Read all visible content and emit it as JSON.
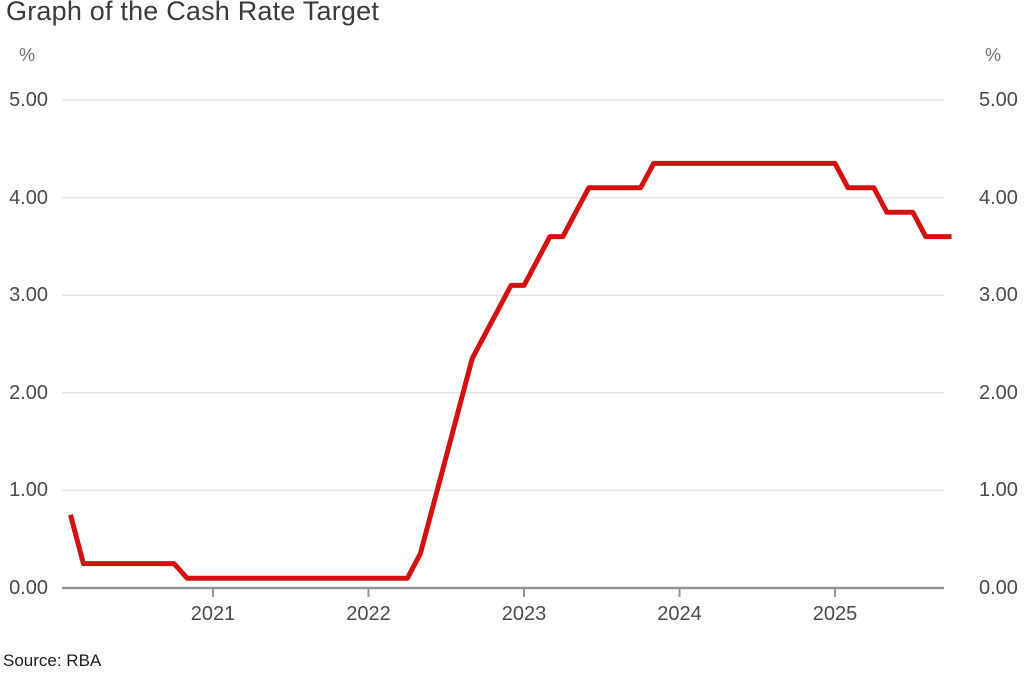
{
  "title": "Graph of the Cash Rate Target",
  "source": "Source: RBA",
  "chart_data": {
    "type": "line",
    "title": "Graph of the Cash Rate Target",
    "unit": "%",
    "line_color": "#d41111",
    "grid_color": "#e4e4e4",
    "axis_color": "#959595",
    "legend": "none",
    "grid": "horizontal",
    "y_axis": {
      "min": 0,
      "max": 5,
      "tick_labels": [
        "0.00",
        "1.00",
        "2.00",
        "3.00",
        "4.00",
        "5.00"
      ],
      "tick_values": [
        0,
        1,
        2,
        3,
        4,
        5
      ],
      "shown_on": "both sides"
    },
    "x_axis": {
      "tick_labels": [
        "2021",
        "2022",
        "2023",
        "2024",
        "2025"
      ],
      "tick_values": [
        2021,
        2022,
        2023,
        2024,
        2025
      ],
      "range_start": "2020-02",
      "range_end": "2025-10"
    },
    "series": [
      {
        "name": "Cash Rate Target",
        "points_format": "[year, month, rate_percent]",
        "points": [
          [
            2020,
            2,
            0.75
          ],
          [
            2020,
            3,
            0.25
          ],
          [
            2020,
            4,
            0.25
          ],
          [
            2020,
            5,
            0.25
          ],
          [
            2020,
            6,
            0.25
          ],
          [
            2020,
            7,
            0.25
          ],
          [
            2020,
            8,
            0.25
          ],
          [
            2020,
            9,
            0.25
          ],
          [
            2020,
            10,
            0.25
          ],
          [
            2020,
            11,
            0.1
          ],
          [
            2020,
            12,
            0.1
          ],
          [
            2021,
            1,
            0.1
          ],
          [
            2021,
            2,
            0.1
          ],
          [
            2021,
            3,
            0.1
          ],
          [
            2021,
            4,
            0.1
          ],
          [
            2021,
            5,
            0.1
          ],
          [
            2021,
            6,
            0.1
          ],
          [
            2021,
            7,
            0.1
          ],
          [
            2021,
            8,
            0.1
          ],
          [
            2021,
            9,
            0.1
          ],
          [
            2021,
            10,
            0.1
          ],
          [
            2021,
            11,
            0.1
          ],
          [
            2021,
            12,
            0.1
          ],
          [
            2022,
            1,
            0.1
          ],
          [
            2022,
            2,
            0.1
          ],
          [
            2022,
            3,
            0.1
          ],
          [
            2022,
            4,
            0.1
          ],
          [
            2022,
            5,
            0.35
          ],
          [
            2022,
            6,
            0.85
          ],
          [
            2022,
            7,
            1.35
          ],
          [
            2022,
            8,
            1.85
          ],
          [
            2022,
            9,
            2.35
          ],
          [
            2022,
            10,
            2.6
          ],
          [
            2022,
            11,
            2.85
          ],
          [
            2022,
            12,
            3.1
          ],
          [
            2023,
            1,
            3.1
          ],
          [
            2023,
            2,
            3.35
          ],
          [
            2023,
            3,
            3.6
          ],
          [
            2023,
            4,
            3.6
          ],
          [
            2023,
            5,
            3.85
          ],
          [
            2023,
            6,
            4.1
          ],
          [
            2023,
            7,
            4.1
          ],
          [
            2023,
            8,
            4.1
          ],
          [
            2023,
            9,
            4.1
          ],
          [
            2023,
            10,
            4.1
          ],
          [
            2023,
            11,
            4.35
          ],
          [
            2023,
            12,
            4.35
          ],
          [
            2024,
            1,
            4.35
          ],
          [
            2024,
            2,
            4.35
          ],
          [
            2024,
            3,
            4.35
          ],
          [
            2024,
            4,
            4.35
          ],
          [
            2024,
            5,
            4.35
          ],
          [
            2024,
            6,
            4.35
          ],
          [
            2024,
            7,
            4.35
          ],
          [
            2024,
            8,
            4.35
          ],
          [
            2024,
            9,
            4.35
          ],
          [
            2024,
            10,
            4.35
          ],
          [
            2024,
            11,
            4.35
          ],
          [
            2024,
            12,
            4.35
          ],
          [
            2025,
            1,
            4.35
          ],
          [
            2025,
            2,
            4.1
          ],
          [
            2025,
            3,
            4.1
          ],
          [
            2025,
            4,
            4.1
          ],
          [
            2025,
            5,
            3.85
          ],
          [
            2025,
            6,
            3.85
          ],
          [
            2025,
            7,
            3.85
          ],
          [
            2025,
            8,
            3.6
          ],
          [
            2025,
            9,
            3.6
          ],
          [
            2025,
            10,
            3.6
          ]
        ]
      }
    ]
  }
}
